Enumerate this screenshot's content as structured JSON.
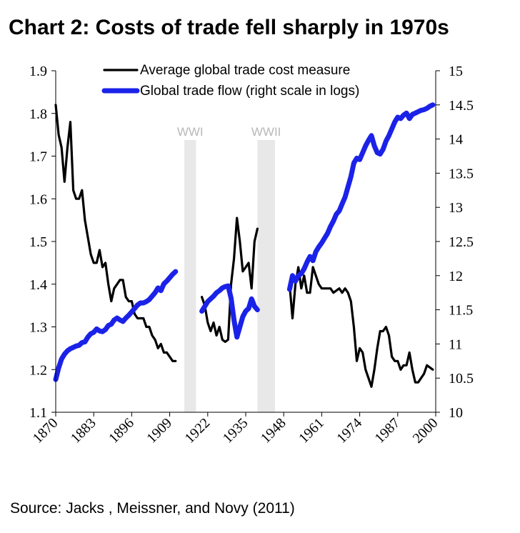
{
  "title": "Chart 2:  Costs of trade fell sharply in 1970s",
  "source": "Source:  Jacks , Meissner, and Novy (2011)",
  "chart_data": {
    "type": "line",
    "xlim": [
      1870,
      2000
    ],
    "x_ticks": [
      "1870",
      "1883",
      "1896",
      "1909",
      "1922",
      "1935",
      "1948",
      "1961",
      "1974",
      "1987",
      "2000"
    ],
    "y_left": {
      "range": [
        1.1,
        1.9
      ],
      "ticks": [
        "1.1",
        "1.2",
        "1.3",
        "1.4",
        "1.5",
        "1.6",
        "1.7",
        "1.8",
        "1.9"
      ]
    },
    "y_right": {
      "range": [
        10,
        15
      ],
      "ticks": [
        "10",
        "10.5",
        "11",
        "11.5",
        "12",
        "12.5",
        "13",
        "13.5",
        "14",
        "14.5",
        "15"
      ]
    },
    "grid": false,
    "legend_position": "top",
    "shaded_periods": [
      {
        "label": "WWI",
        "from": 1914,
        "to": 1918
      },
      {
        "label": "WWII",
        "from": 1939,
        "to": 1945
      }
    ],
    "series": [
      {
        "name": "Average global trade cost measure",
        "axis": "left",
        "color": "#000000",
        "segments": [
          [
            [
              1870,
              1.82
            ],
            [
              1871,
              1.75
            ],
            [
              1872,
              1.72
            ],
            [
              1873,
              1.64
            ],
            [
              1874,
              1.72
            ],
            [
              1875,
              1.78
            ],
            [
              1876,
              1.62
            ],
            [
              1877,
              1.6
            ],
            [
              1878,
              1.6
            ],
            [
              1879,
              1.62
            ],
            [
              1880,
              1.55
            ],
            [
              1881,
              1.51
            ],
            [
              1882,
              1.47
            ],
            [
              1883,
              1.45
            ],
            [
              1884,
              1.45
            ],
            [
              1885,
              1.48
            ],
            [
              1886,
              1.44
            ],
            [
              1887,
              1.45
            ],
            [
              1888,
              1.4
            ],
            [
              1889,
              1.36
            ],
            [
              1890,
              1.39
            ],
            [
              1891,
              1.4
            ],
            [
              1892,
              1.41
            ],
            [
              1893,
              1.41
            ],
            [
              1894,
              1.37
            ],
            [
              1895,
              1.36
            ],
            [
              1896,
              1.36
            ],
            [
              1897,
              1.33
            ],
            [
              1898,
              1.32
            ],
            [
              1899,
              1.32
            ],
            [
              1900,
              1.32
            ],
            [
              1901,
              1.3
            ],
            [
              1902,
              1.3
            ],
            [
              1903,
              1.28
            ],
            [
              1904,
              1.27
            ],
            [
              1905,
              1.25
            ],
            [
              1906,
              1.26
            ],
            [
              1907,
              1.24
            ],
            [
              1908,
              1.24
            ],
            [
              1909,
              1.23
            ],
            [
              1910,
              1.22
            ],
            [
              1911,
              1.22
            ]
          ],
          [
            [
              1920,
              1.37
            ],
            [
              1921,
              1.35
            ],
            [
              1922,
              1.31
            ],
            [
              1923,
              1.29
            ],
            [
              1924,
              1.31
            ],
            [
              1925,
              1.28
            ],
            [
              1926,
              1.3
            ],
            [
              1927,
              1.27
            ],
            [
              1928,
              1.265
            ],
            [
              1929,
              1.27
            ],
            [
              1930,
              1.4
            ],
            [
              1931,
              1.46
            ],
            [
              1932,
              1.555
            ],
            [
              1933,
              1.5
            ],
            [
              1934,
              1.43
            ],
            [
              1935,
              1.44
            ],
            [
              1936,
              1.45
            ],
            [
              1937,
              1.39
            ],
            [
              1938,
              1.5
            ],
            [
              1939,
              1.53
            ]
          ],
          [
            [
              1950,
              1.4
            ],
            [
              1951,
              1.32
            ],
            [
              1952,
              1.4
            ],
            [
              1953,
              1.44
            ],
            [
              1954,
              1.39
            ],
            [
              1955,
              1.42
            ],
            [
              1956,
              1.38
            ],
            [
              1957,
              1.38
            ],
            [
              1958,
              1.44
            ],
            [
              1959,
              1.42
            ],
            [
              1960,
              1.4
            ],
            [
              1961,
              1.39
            ],
            [
              1962,
              1.39
            ],
            [
              1963,
              1.39
            ],
            [
              1964,
              1.39
            ],
            [
              1965,
              1.38
            ],
            [
              1966,
              1.385
            ],
            [
              1967,
              1.39
            ],
            [
              1968,
              1.38
            ],
            [
              1969,
              1.39
            ],
            [
              1970,
              1.38
            ],
            [
              1971,
              1.36
            ],
            [
              1972,
              1.3
            ],
            [
              1973,
              1.22
            ],
            [
              1974,
              1.25
            ],
            [
              1975,
              1.24
            ],
            [
              1976,
              1.2
            ],
            [
              1977,
              1.18
            ],
            [
              1978,
              1.16
            ],
            [
              1979,
              1.2
            ],
            [
              1980,
              1.25
            ],
            [
              1981,
              1.29
            ],
            [
              1982,
              1.29
            ],
            [
              1983,
              1.3
            ],
            [
              1984,
              1.28
            ],
            [
              1985,
              1.23
            ],
            [
              1986,
              1.22
            ],
            [
              1987,
              1.22
            ],
            [
              1988,
              1.2
            ],
            [
              1989,
              1.21
            ],
            [
              1990,
              1.21
            ],
            [
              1991,
              1.24
            ],
            [
              1992,
              1.2
            ],
            [
              1993,
              1.17
            ],
            [
              1994,
              1.17
            ],
            [
              1995,
              1.18
            ],
            [
              1996,
              1.19
            ],
            [
              1997,
              1.21
            ],
            [
              1998,
              1.205
            ],
            [
              1999,
              1.2
            ]
          ]
        ]
      },
      {
        "name": "Global trade flow (right scale in logs)",
        "axis": "right",
        "color": "#1b22e8",
        "segments": [
          [
            [
              1870,
              10.48
            ],
            [
              1871,
              10.65
            ],
            [
              1872,
              10.78
            ],
            [
              1873,
              10.85
            ],
            [
              1874,
              10.9
            ],
            [
              1875,
              10.93
            ],
            [
              1876,
              10.95
            ],
            [
              1877,
              10.97
            ],
            [
              1878,
              10.98
            ],
            [
              1879,
              11.02
            ],
            [
              1880,
              11.03
            ],
            [
              1881,
              11.1
            ],
            [
              1882,
              11.15
            ],
            [
              1883,
              11.17
            ],
            [
              1884,
              11.22
            ],
            [
              1885,
              11.19
            ],
            [
              1886,
              11.18
            ],
            [
              1887,
              11.21
            ],
            [
              1888,
              11.27
            ],
            [
              1889,
              11.29
            ],
            [
              1890,
              11.35
            ],
            [
              1891,
              11.38
            ],
            [
              1892,
              11.35
            ],
            [
              1893,
              11.33
            ],
            [
              1894,
              11.38
            ],
            [
              1895,
              11.42
            ],
            [
              1896,
              11.47
            ],
            [
              1897,
              11.52
            ],
            [
              1898,
              11.57
            ],
            [
              1899,
              11.6
            ],
            [
              1900,
              11.6
            ],
            [
              1901,
              11.62
            ],
            [
              1902,
              11.65
            ],
            [
              1903,
              11.7
            ],
            [
              1904,
              11.75
            ],
            [
              1905,
              11.82
            ],
            [
              1906,
              11.78
            ],
            [
              1907,
              11.88
            ],
            [
              1908,
              11.92
            ],
            [
              1909,
              11.97
            ],
            [
              1910,
              12.02
            ],
            [
              1911,
              12.06
            ]
          ],
          [
            [
              1920,
              11.48
            ],
            [
              1921,
              11.55
            ],
            [
              1922,
              11.62
            ],
            [
              1923,
              11.66
            ],
            [
              1924,
              11.7
            ],
            [
              1925,
              11.75
            ],
            [
              1926,
              11.78
            ],
            [
              1927,
              11.82
            ],
            [
              1928,
              11.84
            ],
            [
              1929,
              11.85
            ],
            [
              1930,
              11.67
            ],
            [
              1931,
              11.35
            ],
            [
              1932,
              11.1
            ],
            [
              1933,
              11.25
            ],
            [
              1934,
              11.4
            ],
            [
              1935,
              11.48
            ],
            [
              1936,
              11.52
            ],
            [
              1937,
              11.66
            ],
            [
              1938,
              11.55
            ],
            [
              1939,
              11.5
            ]
          ],
          [
            [
              1950,
              11.8
            ],
            [
              1951,
              12.0
            ],
            [
              1952,
              11.92
            ],
            [
              1953,
              12.0
            ],
            [
              1954,
              12.03
            ],
            [
              1955,
              12.1
            ],
            [
              1956,
              12.2
            ],
            [
              1957,
              12.28
            ],
            [
              1958,
              12.22
            ],
            [
              1959,
              12.35
            ],
            [
              1960,
              12.42
            ],
            [
              1961,
              12.48
            ],
            [
              1962,
              12.55
            ],
            [
              1963,
              12.62
            ],
            [
              1964,
              12.72
            ],
            [
              1965,
              12.8
            ],
            [
              1966,
              12.9
            ],
            [
              1967,
              12.95
            ],
            [
              1968,
              13.05
            ],
            [
              1969,
              13.15
            ],
            [
              1970,
              13.3
            ],
            [
              1971,
              13.45
            ],
            [
              1972,
              13.65
            ],
            [
              1973,
              13.72
            ],
            [
              1974,
              13.7
            ],
            [
              1975,
              13.8
            ],
            [
              1976,
              13.9
            ],
            [
              1977,
              13.98
            ],
            [
              1978,
              14.05
            ],
            [
              1979,
              13.9
            ],
            [
              1980,
              13.8
            ],
            [
              1981,
              13.78
            ],
            [
              1982,
              13.85
            ],
            [
              1983,
              13.97
            ],
            [
              1984,
              14.05
            ],
            [
              1985,
              14.15
            ],
            [
              1986,
              14.25
            ],
            [
              1987,
              14.32
            ],
            [
              1988,
              14.3
            ],
            [
              1989,
              14.35
            ],
            [
              1990,
              14.38
            ],
            [
              1991,
              14.3
            ],
            [
              1992,
              14.36
            ],
            [
              1993,
              14.38
            ],
            [
              1994,
              14.4
            ],
            [
              1995,
              14.42
            ],
            [
              1996,
              14.43
            ],
            [
              1997,
              14.45
            ],
            [
              1998,
              14.48
            ],
            [
              1999,
              14.5
            ]
          ]
        ]
      }
    ]
  }
}
